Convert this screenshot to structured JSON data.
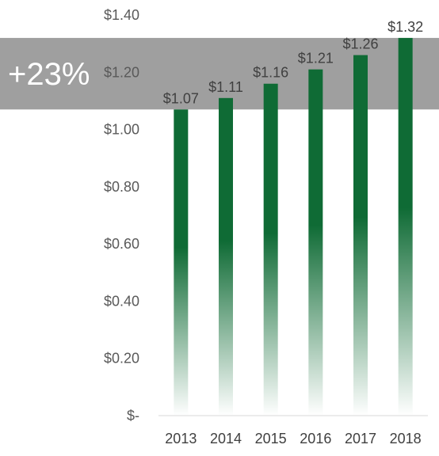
{
  "chart_data": {
    "type": "bar",
    "categories": [
      "2013",
      "2014",
      "2015",
      "2016",
      "2017",
      "2018"
    ],
    "values": [
      1.07,
      1.11,
      1.16,
      1.21,
      1.26,
      1.32
    ],
    "data_labels": [
      "$1.07",
      "$1.11",
      "$1.16",
      "$1.21",
      "$1.26",
      "$1.32"
    ],
    "y_ticks": [
      0,
      0.2,
      0.4,
      0.6,
      0.8,
      1.0,
      1.2,
      1.4
    ],
    "y_tick_labels": [
      "$-",
      "$0.20",
      "$0.40",
      "$0.60",
      "$0.80",
      "$1.00",
      "$1.20",
      "$1.40"
    ],
    "ylim": [
      0,
      1.4
    ],
    "grid": false,
    "title": "",
    "xlabel": "",
    "ylabel": "",
    "bar_color": "#0f6b35",
    "bar_fill_style": "gradient fading to white at the base",
    "callout": {
      "text": "+23%",
      "band_from": 1.07,
      "band_to": 1.32,
      "color": "#7f7f7f"
    }
  }
}
